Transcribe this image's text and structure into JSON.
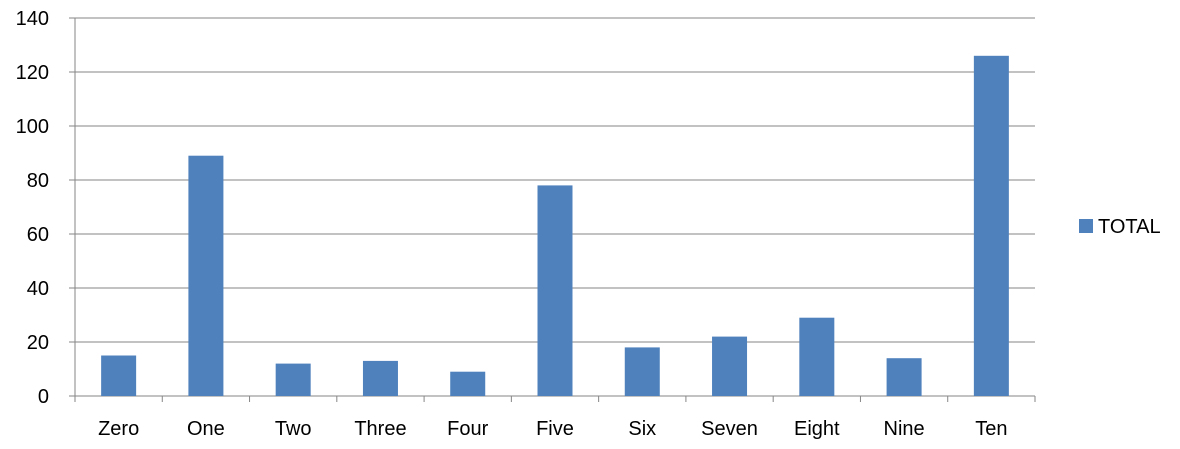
{
  "chart_data": {
    "type": "bar",
    "title": "",
    "xlabel": "",
    "ylabel": "",
    "categories": [
      "Zero",
      "One",
      "Two",
      "Three",
      "Four",
      "Five",
      "Six",
      "Seven",
      "Eight",
      "Nine",
      "Ten"
    ],
    "series": [
      {
        "name": "TOTAL",
        "values": [
          15,
          89,
          12,
          13,
          9,
          78,
          18,
          22,
          29,
          14,
          126
        ],
        "color": "#4F81BD"
      }
    ],
    "ylim": [
      0,
      140
    ],
    "yticks": [
      "0",
      "20",
      "40",
      "60",
      "80",
      "100",
      "120",
      "140"
    ],
    "grid": true,
    "legend": "right"
  }
}
